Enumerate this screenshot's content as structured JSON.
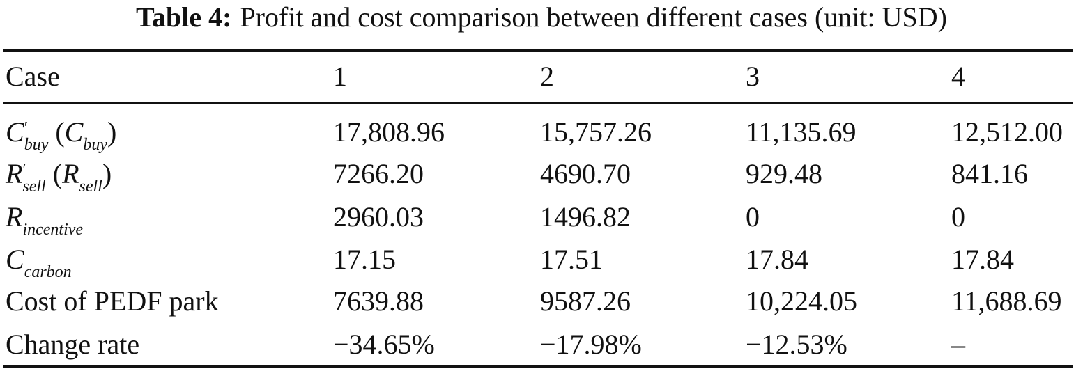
{
  "title": {
    "label": "Table 4:",
    "text": "Profit and cost comparison between different cases (unit: USD)"
  },
  "table": {
    "header": [
      "Case",
      "1",
      "2",
      "3",
      "4"
    ],
    "rows": [
      {
        "label": [
          {
            "base": "C",
            "sup": "′",
            "sub": "buy",
            "italic": true
          },
          {
            "base": " ("
          },
          {
            "base": "C",
            "sub": "buy",
            "italic": true
          },
          {
            "base": ")"
          }
        ],
        "cells": [
          "17,808.96",
          "15,757.26",
          "11,135.69",
          "12,512.00"
        ]
      },
      {
        "label": [
          {
            "base": "R",
            "sup": "′",
            "sub": "sell",
            "italic": true
          },
          {
            "base": " ("
          },
          {
            "base": "R",
            "sub": "sell",
            "italic": true
          },
          {
            "base": ")"
          }
        ],
        "cells": [
          "7266.20",
          "4690.70",
          "929.48",
          "841.16"
        ]
      },
      {
        "label": [
          {
            "base": "R",
            "sub": "incentive",
            "italic": true
          }
        ],
        "cells": [
          "2960.03",
          "1496.82",
          "0",
          "0"
        ]
      },
      {
        "label": [
          {
            "base": "C",
            "sub": "carbon",
            "italic": true
          }
        ],
        "cells": [
          "17.15",
          "17.51",
          "17.84",
          "17.84"
        ]
      },
      {
        "label": [
          {
            "base": "Cost of PEDF park"
          }
        ],
        "cells": [
          "7639.88",
          "9587.26",
          "10,224.05",
          "11,688.69"
        ]
      },
      {
        "label": [
          {
            "base": "Change rate"
          }
        ],
        "cells": [
          "−34.65%",
          "−17.98%",
          "−12.53%",
          "–"
        ]
      }
    ]
  }
}
